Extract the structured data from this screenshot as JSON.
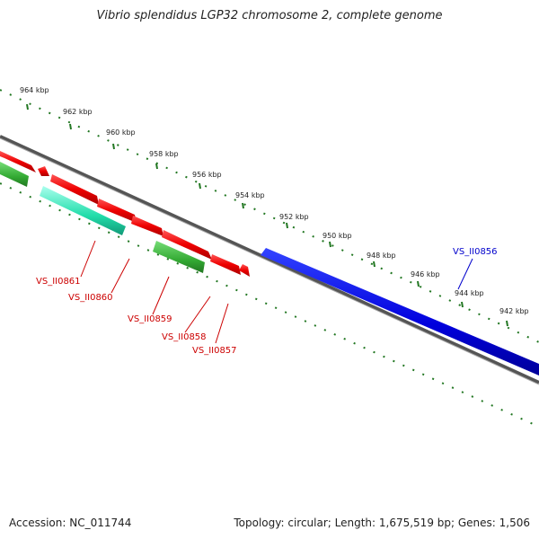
{
  "title": "Vibrio splendidus LGP32 chromosome 2, complete genome",
  "footer": {
    "accession": "Accession: NC_011744",
    "summary": "Topology: circular; Length: 1,675,519 bp; Genes: 1,506"
  },
  "ruler_labels": [
    "964 kbp",
    "962 kbp",
    "960 kbp",
    "958 kbp",
    "956 kbp",
    "954 kbp",
    "952 kbp",
    "950 kbp",
    "948 kbp",
    "946 kbp",
    "944 kbp",
    "942 kbp"
  ],
  "genes": [
    {
      "label": "VS_II0861",
      "color": "#cc0000"
    },
    {
      "label": "VS_II0860",
      "color": "#cc0000"
    },
    {
      "label": "VS_II0859",
      "color": "#cc0000"
    },
    {
      "label": "VS_II0858",
      "color": "#cc0000"
    },
    {
      "label": "VS_II0857",
      "color": "#cc0000"
    },
    {
      "label": "VS_II0856",
      "color": "#0000cc"
    }
  ],
  "colors": {
    "forward_cds": "#e00000",
    "reverse_cds": "#0000dd",
    "rna_green": "#33aa33",
    "rna_teal": "#22ddaa",
    "backbone": "#777777",
    "ticks": "#227722"
  }
}
